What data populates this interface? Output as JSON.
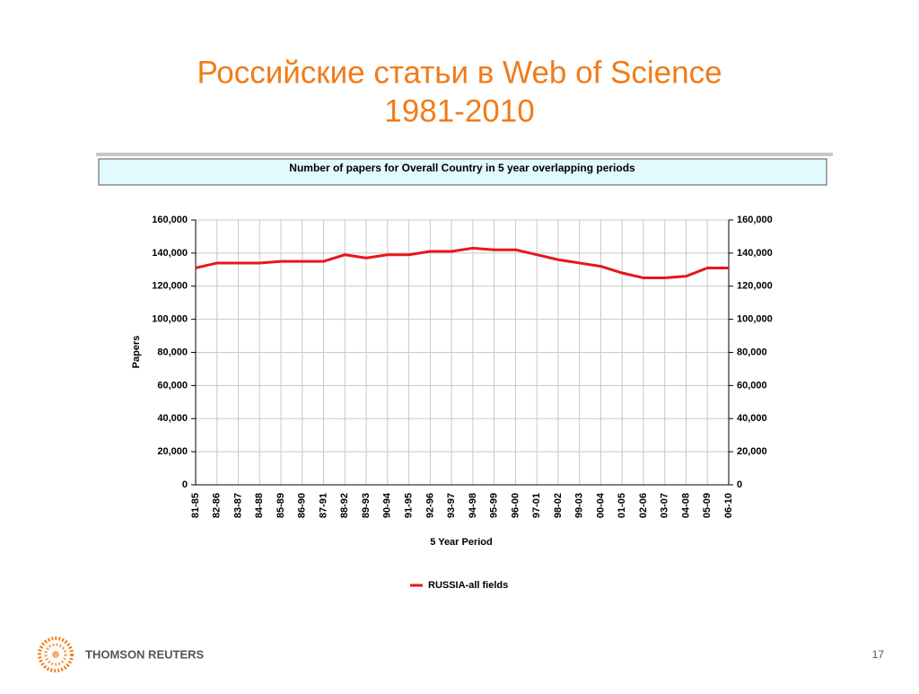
{
  "slide": {
    "title": "Российские статьи в Web of Science",
    "subtitle": "1981-2010",
    "brand": "THOMSON REUTERS",
    "page_number": "17"
  },
  "chart_data": {
    "type": "line",
    "title": "Number of papers for Overall Country in 5 year overlapping periods",
    "xlabel": "5 Year Period",
    "ylabel": "Papers",
    "categories": [
      "81-85",
      "82-86",
      "83-87",
      "84-88",
      "85-89",
      "86-90",
      "87-91",
      "88-92",
      "89-93",
      "90-94",
      "91-95",
      "92-96",
      "93-97",
      "94-98",
      "95-99",
      "96-00",
      "97-01",
      "98-02",
      "99-03",
      "00-04",
      "01-05",
      "02-06",
      "03-07",
      "04-08",
      "05-09",
      "06-10"
    ],
    "series": [
      {
        "name": "RUSSIA-all fields",
        "color": "#e8161c",
        "values": [
          131000,
          134000,
          134000,
          134000,
          135000,
          135000,
          135000,
          139000,
          137000,
          139000,
          139000,
          141000,
          141000,
          143000,
          142000,
          142000,
          139000,
          136000,
          134000,
          132000,
          128000,
          125000,
          125000,
          126000,
          131000,
          131000
        ]
      }
    ],
    "ylim": [
      0,
      160000
    ],
    "yticks": [
      0,
      {
        "value": 20000,
        "label": "20,000"
      },
      {
        "value": 40000,
        "label": "40,000"
      },
      {
        "value": 60000,
        "label": "60,000"
      },
      {
        "value": 80000,
        "label": "80,000"
      },
      {
        "value": 100000,
        "label": "100,000"
      },
      {
        "value": 120000,
        "label": "120,000"
      },
      {
        "value": 140000,
        "label": "140,000"
      },
      {
        "value": 160000,
        "label": "160,000"
      }
    ],
    "grid": true,
    "legend": "bottom"
  }
}
